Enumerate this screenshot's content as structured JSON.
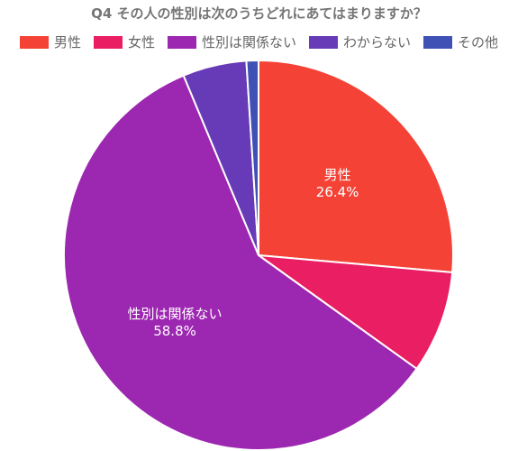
{
  "chart_data": {
    "type": "pie",
    "title": "Q4 その人の性別は次のうちどれにあてはまりますか？",
    "categories": [
      "男性",
      "女性",
      "性別は関係ない",
      "わからない",
      "その他"
    ],
    "values": [
      26.4,
      8.5,
      58.8,
      5.3,
      1.0
    ],
    "colors": [
      "#f44336",
      "#e91e63",
      "#9c27b0",
      "#673ab7",
      "#3f51b5"
    ],
    "data_labels": [
      {
        "name": "男性",
        "value": "26.4%"
      },
      {
        "name": "性別は関係ない",
        "value": "58.8%"
      }
    ],
    "legend_position": "top",
    "start_angle": "top (12 o'clock), clockwise"
  }
}
